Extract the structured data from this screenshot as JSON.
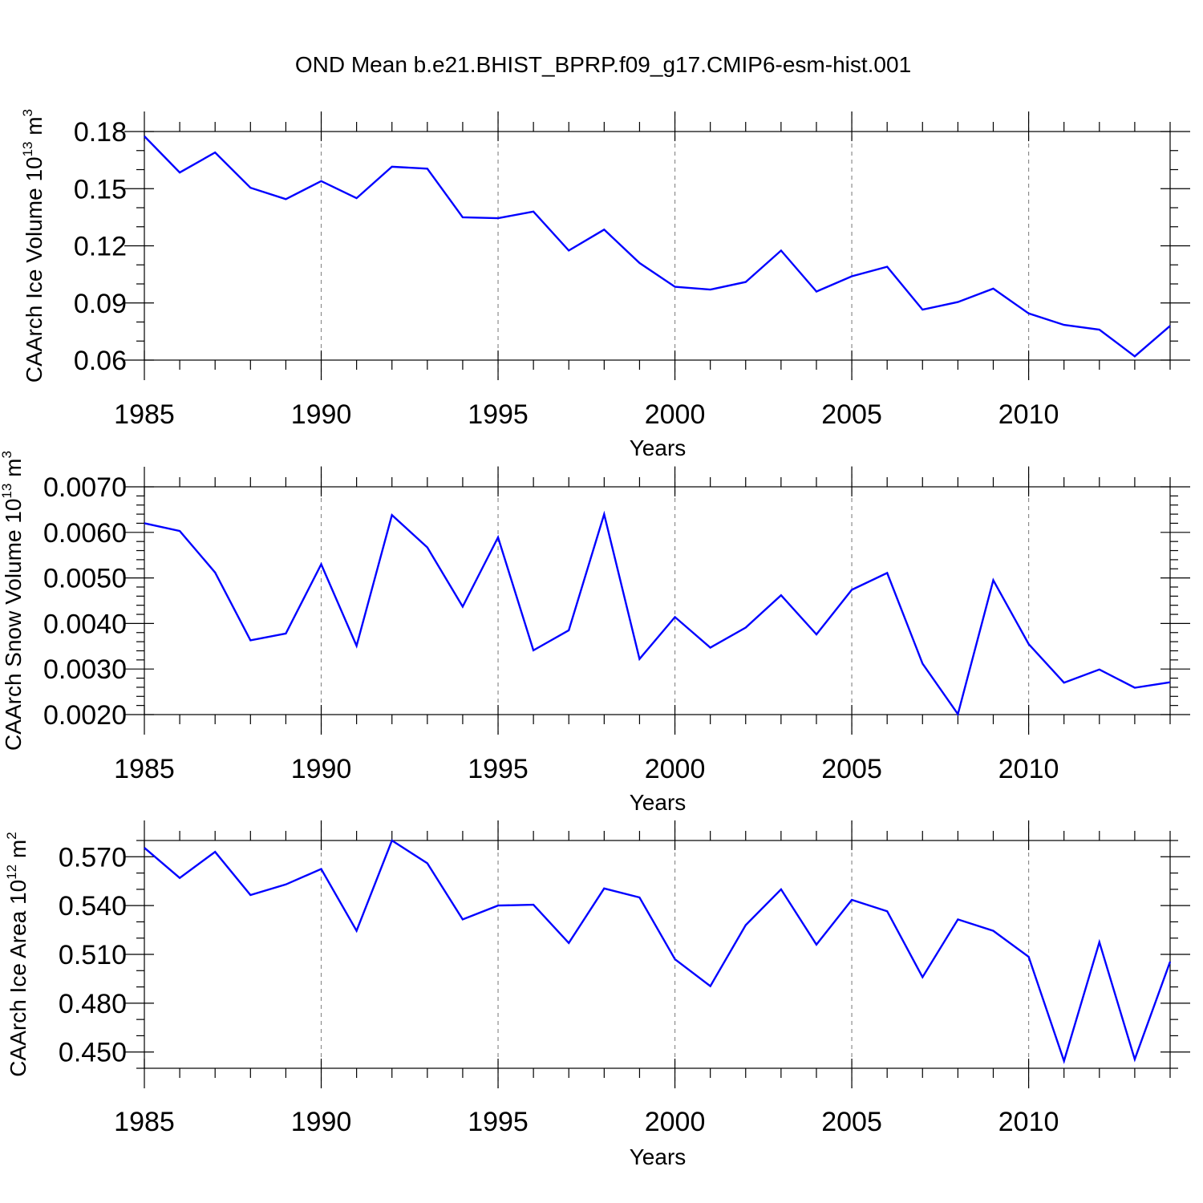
{
  "title": "OND Mean b.e21.BHIST_BPRP.f09_g17.CMIP6-esm-hist.001",
  "colors": {
    "series": "#0000ff",
    "grid": "#8c8c8c",
    "axis": "#000000"
  },
  "chart_data": [
    {
      "type": "line",
      "title": "OND Mean b.e21.BHIST_BPRP.f09_g17.CMIP6-esm-hist.001",
      "xlabel": "Years",
      "ylabel": "CAArch Ice Volume 10",
      "ylabel_sup": "13",
      "ylabel_unit": " m",
      "ylabel_unit_sup": "3",
      "x": [
        1985,
        1986,
        1987,
        1988,
        1989,
        1990,
        1991,
        1992,
        1993,
        1994,
        1995,
        1996,
        1997,
        1998,
        1999,
        2000,
        2001,
        2002,
        2003,
        2004,
        2005,
        2006,
        2007,
        2008,
        2009,
        2010,
        2011,
        2012,
        2013,
        2014
      ],
      "y": [
        0.1775,
        0.1585,
        0.169,
        0.1505,
        0.1445,
        0.154,
        0.145,
        0.1615,
        0.1605,
        0.135,
        0.1345,
        0.138,
        0.1175,
        0.1285,
        0.111,
        0.0985,
        0.097,
        0.101,
        0.1175,
        0.096,
        0.104,
        0.109,
        0.0865,
        0.0905,
        0.0975,
        0.0845,
        0.0785,
        0.076,
        0.062,
        0.078
      ],
      "xlim": [
        1985,
        2014
      ],
      "ylim": [
        0.06,
        0.18
      ],
      "xticks": [
        1985,
        1990,
        1995,
        2000,
        2005,
        2010
      ],
      "yticks": [
        0.06,
        0.09,
        0.12,
        0.15,
        0.18
      ],
      "ytick_labels": [
        "0.06",
        "0.09",
        "0.12",
        "0.15",
        "0.18"
      ],
      "yminor_step": 0.01,
      "grid": "vertical dashed at x ticks"
    },
    {
      "type": "line",
      "xlabel": "Years",
      "ylabel": "CAArch Snow Volume 10",
      "ylabel_sup": "13",
      "ylabel_unit": " m",
      "ylabel_unit_sup": "3",
      "x": [
        1985,
        1986,
        1987,
        1988,
        1989,
        1990,
        1991,
        1992,
        1993,
        1994,
        1995,
        1996,
        1997,
        1998,
        1999,
        2000,
        2001,
        2002,
        2003,
        2004,
        2005,
        2006,
        2007,
        2008,
        2009,
        2010,
        2011,
        2012,
        2013,
        2014
      ],
      "y": [
        0.0062,
        0.00603,
        0.00512,
        0.00363,
        0.00378,
        0.0053,
        0.00351,
        0.00638,
        0.00567,
        0.00437,
        0.00589,
        0.00341,
        0.00385,
        0.0064,
        0.00322,
        0.00414,
        0.00347,
        0.00391,
        0.00462,
        0.00376,
        0.00474,
        0.00511,
        0.00312,
        0.00201,
        0.00495,
        0.00355,
        0.0027,
        0.00299,
        0.00259,
        0.00271
      ],
      "xlim": [
        1985,
        2014
      ],
      "ylim": [
        0.002,
        0.007
      ],
      "xticks": [
        1985,
        1990,
        1995,
        2000,
        2005,
        2010
      ],
      "yticks": [
        0.002,
        0.003,
        0.004,
        0.005,
        0.006,
        0.007
      ],
      "ytick_labels": [
        "0.0020",
        "0.0030",
        "0.0040",
        "0.0050",
        "0.0060",
        "0.0070"
      ],
      "yminor_step": 0.0002,
      "grid": "vertical dashed at x ticks"
    },
    {
      "type": "line",
      "xlabel": "Years",
      "ylabel": "CAArch Ice Area 10",
      "ylabel_sup": "12",
      "ylabel_unit": " m",
      "ylabel_unit_sup": "2",
      "x": [
        1985,
        1986,
        1987,
        1988,
        1989,
        1990,
        1991,
        1992,
        1993,
        1994,
        1995,
        1996,
        1997,
        1998,
        1999,
        2000,
        2001,
        2002,
        2003,
        2004,
        2005,
        2006,
        2007,
        2008,
        2009,
        2010,
        2011,
        2012,
        2013,
        2014
      ],
      "y": [
        0.5755,
        0.557,
        0.573,
        0.5465,
        0.553,
        0.5625,
        0.5245,
        0.58,
        0.566,
        0.5315,
        0.54,
        0.5405,
        0.517,
        0.5505,
        0.545,
        0.507,
        0.4905,
        0.528,
        0.55,
        0.516,
        0.5435,
        0.5365,
        0.496,
        0.5315,
        0.5245,
        0.5085,
        0.4445,
        0.5175,
        0.4455,
        0.5055
      ],
      "xlim": [
        1985,
        2014
      ],
      "ylim": [
        0.44,
        0.58
      ],
      "xticks": [
        1985,
        1990,
        1995,
        2000,
        2005,
        2010
      ],
      "yticks": [
        0.45,
        0.48,
        0.51,
        0.54,
        0.57
      ],
      "ytick_labels": [
        "0.450",
        "0.480",
        "0.510",
        "0.540",
        "0.570"
      ],
      "yminor_step": 0.01,
      "grid": "vertical dashed at x ticks"
    }
  ]
}
